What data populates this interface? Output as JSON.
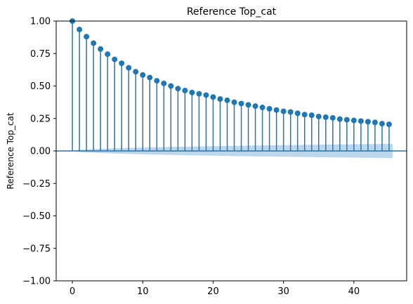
{
  "chart_data": {
    "type": "stem",
    "title": "Reference Top_cat",
    "xlabel": "",
    "ylabel": "Reference Top_cat",
    "xlim": [
      -2.3,
      47.5
    ],
    "ylim": [
      -1.0,
      1.0
    ],
    "xticks": [
      0,
      10,
      20,
      30,
      40
    ],
    "yticks": [
      -1.0,
      -0.75,
      -0.5,
      -0.25,
      0.0,
      0.25,
      0.5,
      0.75,
      1.0
    ],
    "ytick_labels": [
      "−1.00",
      "−0.75",
      "−0.50",
      "−0.25",
      "0.00",
      "0.25",
      "0.50",
      "0.75",
      "1.00"
    ],
    "xtick_labels": [
      "0",
      "10",
      "20",
      "30",
      "40"
    ],
    "lags": [
      0,
      1,
      2,
      3,
      4,
      5,
      6,
      7,
      8,
      9,
      10,
      11,
      12,
      13,
      14,
      15,
      16,
      17,
      18,
      19,
      20,
      21,
      22,
      23,
      24,
      25,
      26,
      27,
      28,
      29,
      30,
      31,
      32,
      33,
      34,
      35,
      36,
      37,
      38,
      39,
      40,
      41,
      42,
      43,
      44,
      45
    ],
    "values": [
      1.0,
      0.935,
      0.88,
      0.83,
      0.785,
      0.745,
      0.705,
      0.675,
      0.64,
      0.61,
      0.585,
      0.565,
      0.54,
      0.52,
      0.5,
      0.48,
      0.465,
      0.45,
      0.44,
      0.43,
      0.415,
      0.4,
      0.39,
      0.375,
      0.365,
      0.355,
      0.345,
      0.335,
      0.325,
      0.315,
      0.305,
      0.3,
      0.29,
      0.28,
      0.275,
      0.265,
      0.26,
      0.255,
      0.245,
      0.24,
      0.235,
      0.23,
      0.225,
      0.22,
      0.21,
      0.205
    ],
    "confidence_band": {
      "start_lag": 0,
      "end_lag": 45.5,
      "half_width_end": 0.055,
      "half_width_start": 0.0
    },
    "colors": {
      "stem": "#1f77b4",
      "band": "#a6c8e4",
      "baseline": "#1f77b4"
    },
    "grid": false
  }
}
